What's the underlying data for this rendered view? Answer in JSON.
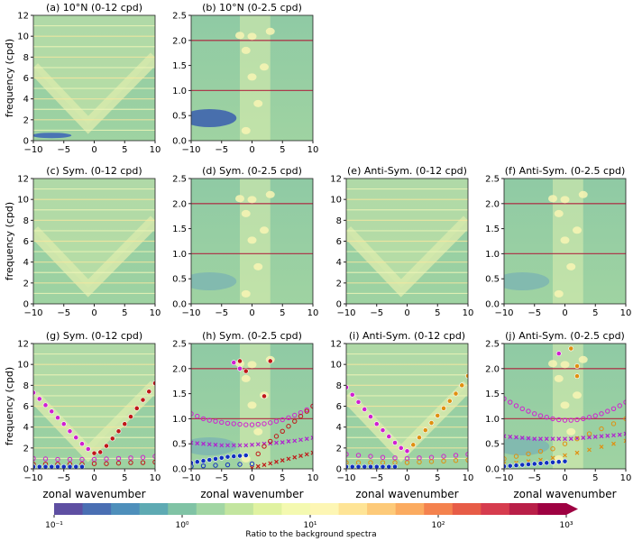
{
  "chart_data": {
    "type": "heatmap",
    "ylabel": "frequency (cpd)",
    "xlabel": "zonal wavenumber",
    "xlim": [
      -10,
      10
    ],
    "xticks": [
      "-10",
      "-5",
      "0",
      "5",
      "10"
    ],
    "panels": [
      {
        "id": "a",
        "title": "(a) 10°N (0-12 cpd)",
        "ylim": [
          0,
          12
        ],
        "yticks": [
          "0",
          "2",
          "4",
          "6",
          "8",
          "10",
          "12"
        ],
        "series": []
      },
      {
        "id": "b",
        "title": "(b) 10°N (0-2.5 cpd)",
        "ylim": [
          0,
          2.5
        ],
        "yticks": [
          "0.0",
          "0.5",
          "1.0",
          "1.5",
          "2.0",
          "2.5"
        ],
        "series": []
      },
      {
        "id": "c",
        "title": "(c) Sym. (0-12 cpd)",
        "ylim": [
          0,
          12
        ],
        "yticks": [
          "0",
          "2",
          "4",
          "6",
          "8",
          "10",
          "12"
        ],
        "series": []
      },
      {
        "id": "d",
        "title": "(d) Sym. (0-2.5 cpd)",
        "ylim": [
          0,
          2.5
        ],
        "yticks": [
          "0.0",
          "0.5",
          "1.0",
          "1.5",
          "2.0",
          "2.5"
        ],
        "series": []
      },
      {
        "id": "e",
        "title": "(e) Anti-Sym. (0-12 cpd)",
        "ylim": [
          0,
          12
        ],
        "yticks": [
          "0",
          "2",
          "4",
          "6",
          "8",
          "10",
          "12"
        ],
        "series": []
      },
      {
        "id": "f",
        "title": "(f) Anti-Sym. (0-2.5 cpd)",
        "ylim": [
          0,
          2.5
        ],
        "yticks": [
          "0.0",
          "0.5",
          "1.0",
          "1.5",
          "2.0",
          "2.5"
        ],
        "series": []
      },
      {
        "id": "g",
        "title": "(g) Sym. (0-12 cpd)",
        "ylim": [
          0,
          12
        ],
        "yticks": [
          "0",
          "2",
          "4",
          "6",
          "8",
          "10",
          "12"
        ],
        "series": [
          {
            "name": "westward-high",
            "marker": "dot",
            "color": "#d020d0",
            "x": [
              -10,
              -9,
              -8,
              -7,
              -6,
              -5,
              -4,
              -3,
              -2,
              -1
            ],
            "y": [
              7.3,
              6.7,
              6.1,
              5.5,
              4.9,
              4.3,
              3.6,
              3.0,
              2.4,
              1.9
            ]
          },
          {
            "name": "eastward-high",
            "marker": "dot",
            "color": "#c01818",
            "x": [
              0,
              1,
              2,
              3,
              4,
              5,
              6,
              7,
              8,
              9,
              10
            ],
            "y": [
              1.5,
              1.6,
              2.2,
              2.9,
              3.6,
              4.3,
              5.0,
              5.8,
              6.6,
              7.4,
              8.2
            ]
          },
          {
            "name": "open-magenta",
            "marker": "ring",
            "color": "#d020d0",
            "x": [
              -10,
              -8,
              -6,
              -4,
              -2,
              0,
              2,
              4,
              6,
              8,
              10
            ],
            "y": [
              1.0,
              0.95,
              0.9,
              0.9,
              0.9,
              0.9,
              0.95,
              1.0,
              1.05,
              1.1,
              1.2
            ]
          },
          {
            "name": "open-red",
            "marker": "ring",
            "color": "#c01818",
            "x": [
              -10,
              -8,
              -6,
              -4,
              -2,
              0,
              2,
              4,
              6,
              8,
              10
            ],
            "y": [
              0.45,
              0.45,
              0.45,
              0.45,
              0.45,
              0.5,
              0.5,
              0.55,
              0.6,
              0.6,
              0.65
            ]
          },
          {
            "name": "blue",
            "marker": "dot",
            "color": "#1030c0",
            "x": [
              -10,
              -9,
              -8,
              -7,
              -6,
              -5,
              -4,
              -3,
              -2
            ],
            "y": [
              0.2,
              0.2,
              0.2,
              0.2,
              0.2,
              0.2,
              0.2,
              0.2,
              0.2
            ]
          }
        ]
      },
      {
        "id": "h",
        "title": "(h) Sym. (0-2.5 cpd)",
        "ylim": [
          0,
          2.5
        ],
        "yticks": [
          "0.0",
          "0.5",
          "1.0",
          "1.5",
          "2.0",
          "2.5"
        ],
        "series": [
          {
            "name": "isolated-peaks",
            "marker": "dot",
            "color": "#c01818",
            "x": [
              -2,
              -1,
              2,
              3
            ],
            "y": [
              2.15,
              1.95,
              1.45,
              2.15
            ]
          },
          {
            "name": "isolated-peaks-m",
            "marker": "dot",
            "color": "#d020d0",
            "x": [
              -2,
              -3
            ],
            "y": [
              2.0,
              2.12
            ]
          },
          {
            "name": "open-magenta",
            "marker": "ring",
            "color": "#d020d0",
            "x": [
              -10,
              -9,
              -8,
              -7,
              -6,
              -5,
              -4,
              -3,
              -2,
              -1,
              0,
              1,
              2,
              3,
              4,
              5,
              6,
              7,
              8,
              9,
              10
            ],
            "y": [
              1.1,
              1.05,
              1.0,
              0.97,
              0.95,
              0.93,
              0.91,
              0.9,
              0.89,
              0.88,
              0.88,
              0.89,
              0.9,
              0.92,
              0.95,
              0.98,
              1.02,
              1.07,
              1.12,
              1.18,
              1.25
            ]
          },
          {
            "name": "cross-magenta",
            "marker": "cross",
            "color": "#b020d0",
            "x": [
              -10,
              -9,
              -8,
              -7,
              -6,
              -5,
              -4,
              -3,
              -2,
              -1,
              0,
              1,
              2,
              3,
              4,
              5,
              6,
              7,
              8,
              9,
              10
            ],
            "y": [
              0.52,
              0.51,
              0.5,
              0.49,
              0.48,
              0.47,
              0.47,
              0.47,
              0.47,
              0.47,
              0.48,
              0.49,
              0.5,
              0.51,
              0.52,
              0.53,
              0.55,
              0.56,
              0.58,
              0.6,
              0.62
            ]
          },
          {
            "name": "open-red",
            "marker": "ring",
            "color": "#c01818",
            "x": [
              1,
              2,
              3,
              4,
              5,
              6,
              7,
              8,
              9,
              10
            ],
            "y": [
              0.3,
              0.45,
              0.55,
              0.65,
              0.75,
              0.85,
              0.95,
              1.05,
              1.15,
              1.25
            ]
          },
          {
            "name": "cross-red",
            "marker": "cross",
            "color": "#c01818",
            "x": [
              0,
              1,
              2,
              3,
              4,
              5,
              6,
              7,
              8,
              9,
              10
            ],
            "y": [
              0.02,
              0.05,
              0.08,
              0.11,
              0.14,
              0.17,
              0.2,
              0.23,
              0.26,
              0.29,
              0.32
            ]
          },
          {
            "name": "blue",
            "marker": "dot",
            "color": "#1030c0",
            "x": [
              -10,
              -9,
              -8,
              -7,
              -6,
              -5,
              -4,
              -3,
              -2,
              -1
            ],
            "y": [
              0.12,
              0.14,
              0.16,
              0.18,
              0.2,
              0.22,
              0.24,
              0.25,
              0.26,
              0.27
            ]
          },
          {
            "name": "blue-open",
            "marker": "ring",
            "color": "#1030c0",
            "x": [
              -10,
              -8,
              -6,
              -4,
              -2,
              0
            ],
            "y": [
              0.05,
              0.06,
              0.07,
              0.08,
              0.09,
              0.1
            ]
          }
        ]
      },
      {
        "id": "i",
        "title": "(i) Anti-Sym. (0-12 cpd)",
        "ylim": [
          0,
          12
        ],
        "yticks": [
          "0",
          "2",
          "4",
          "6",
          "8",
          "10",
          "12"
        ],
        "series": [
          {
            "name": "westward-high",
            "marker": "dot",
            "color": "#d020d0",
            "x": [
              -10,
              -9,
              -8,
              -7,
              -6,
              -5,
              -4,
              -3,
              -2,
              -1,
              0
            ],
            "y": [
              7.8,
              7.1,
              6.4,
              5.7,
              5.0,
              4.3,
              3.7,
              3.1,
              2.5,
              2.0,
              1.7
            ]
          },
          {
            "name": "eastward-high",
            "marker": "dot",
            "color": "#e09010",
            "x": [
              1,
              2,
              3,
              4,
              5,
              6,
              7,
              8,
              9,
              10
            ],
            "y": [
              2.3,
              3.0,
              3.7,
              4.4,
              5.1,
              5.8,
              6.5,
              7.2,
              8.0,
              8.9
            ]
          },
          {
            "name": "open-magenta",
            "marker": "ring",
            "color": "#d020d0",
            "x": [
              -10,
              -8,
              -6,
              -4,
              -2,
              0,
              2,
              4,
              6,
              8,
              10
            ],
            "y": [
              1.4,
              1.3,
              1.2,
              1.1,
              1.05,
              1.0,
              1.05,
              1.1,
              1.2,
              1.3,
              1.4
            ]
          },
          {
            "name": "open-orange",
            "marker": "ring",
            "color": "#e09010",
            "x": [
              -10,
              -8,
              -6,
              -4,
              -2,
              0,
              2,
              4,
              6,
              8,
              10
            ],
            "y": [
              0.6,
              0.6,
              0.6,
              0.6,
              0.6,
              0.6,
              0.65,
              0.7,
              0.75,
              0.8,
              0.85
            ]
          },
          {
            "name": "blue",
            "marker": "dot",
            "color": "#1030c0",
            "x": [
              -10,
              -9,
              -8,
              -7,
              -6,
              -5,
              -4,
              -3,
              -2
            ],
            "y": [
              0.2,
              0.2,
              0.2,
              0.2,
              0.2,
              0.2,
              0.2,
              0.2,
              0.2
            ]
          }
        ]
      },
      {
        "id": "j",
        "title": "(j) Anti-Sym. (0-2.5 cpd)",
        "ylim": [
          0,
          2.5
        ],
        "yticks": [
          "0.0",
          "0.5",
          "1.0",
          "1.5",
          "2.0",
          "2.5"
        ],
        "series": [
          {
            "name": "isolated-peaks",
            "marker": "dot",
            "color": "#e09010",
            "x": [
              1,
              2,
              2
            ],
            "y": [
              2.4,
              2.05,
              1.85
            ]
          },
          {
            "name": "isolated-peaks-m",
            "marker": "dot",
            "color": "#d020d0",
            "x": [
              -1
            ],
            "y": [
              2.3
            ]
          },
          {
            "name": "open-magenta",
            "marker": "ring",
            "color": "#d020d0",
            "x": [
              -10,
              -9,
              -8,
              -7,
              -6,
              -5,
              -4,
              -3,
              -2,
              -1,
              0,
              1,
              2,
              3,
              4,
              5,
              6,
              7,
              8,
              9,
              10
            ],
            "y": [
              1.4,
              1.33,
              1.26,
              1.2,
              1.15,
              1.1,
              1.06,
              1.03,
              1.0,
              0.98,
              0.97,
              0.97,
              0.98,
              1.0,
              1.03,
              1.06,
              1.1,
              1.15,
              1.2,
              1.26,
              1.33
            ]
          },
          {
            "name": "cross-magenta",
            "marker": "cross",
            "color": "#b020d0",
            "x": [
              -10,
              -9,
              -8,
              -7,
              -6,
              -5,
              -4,
              -3,
              -2,
              -1,
              0,
              1,
              2,
              3,
              4,
              5,
              6,
              7,
              8,
              9,
              10
            ],
            "y": [
              0.65,
              0.64,
              0.63,
              0.62,
              0.61,
              0.6,
              0.6,
              0.6,
              0.6,
              0.6,
              0.6,
              0.6,
              0.61,
              0.62,
              0.63,
              0.64,
              0.65,
              0.66,
              0.67,
              0.68,
              0.7
            ]
          },
          {
            "name": "open-orange",
            "marker": "ring",
            "color": "#e09010",
            "x": [
              -10,
              -8,
              -6,
              -4,
              -2,
              0,
              2,
              4,
              6,
              8,
              10
            ],
            "y": [
              0.2,
              0.25,
              0.3,
              0.35,
              0.4,
              0.5,
              0.6,
              0.7,
              0.8,
              0.9,
              1.0
            ]
          },
          {
            "name": "cross-orange",
            "marker": "cross",
            "color": "#e09010",
            "x": [
              -10,
              -8,
              -6,
              -4,
              -2,
              0,
              2,
              4,
              6,
              8,
              10
            ],
            "y": [
              0.1,
              0.12,
              0.15,
              0.18,
              0.22,
              0.27,
              0.32,
              0.38,
              0.44,
              0.5,
              0.56
            ]
          },
          {
            "name": "blue",
            "marker": "dot",
            "color": "#1030c0",
            "x": [
              -10,
              -9,
              -8,
              -7,
              -6,
              -5,
              -4,
              -3,
              -2,
              -1,
              0
            ],
            "y": [
              0.05,
              0.06,
              0.07,
              0.08,
              0.09,
              0.1,
              0.11,
              0.12,
              0.13,
              0.14,
              0.15
            ]
          }
        ]
      }
    ],
    "colorbar": {
      "label": "Ratio to the background spectra",
      "scale": "log",
      "range": [
        0.1,
        1000
      ],
      "tick_labels": [
        "10⁻¹",
        "10⁰",
        "10¹",
        "10²",
        "10³"
      ],
      "extend": "max",
      "colors": [
        "#5e4fa2",
        "#4a6fb3",
        "#4e8fbb",
        "#5eaab3",
        "#80c3a5",
        "#a2d6a4",
        "#c3e59f",
        "#e0f2a1",
        "#f4f9b0",
        "#fdf6b4",
        "#fee496",
        "#fdca79",
        "#fbab60",
        "#f4824e",
        "#e75c47",
        "#d63c4e",
        "#b91f48",
        "#9e0142"
      ]
    }
  }
}
